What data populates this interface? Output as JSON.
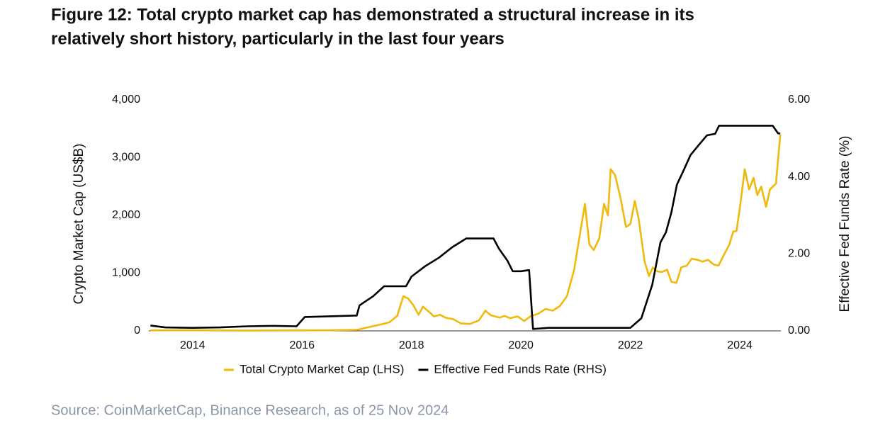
{
  "chart_data": {
    "type": "line",
    "title": [
      "Figure 12: Total crypto market cap has demonstrated a structural increase in its",
      "relatively short history, particularly in the last four years"
    ],
    "y_label": "Crypto Market Cap (US$B)",
    "y2_label": "Effective Fed Funds Rate (%)",
    "source": "Source: CoinMarketCap, Binance Research, as of 25 Nov 2024",
    "xlim": [
      2013.2,
      2024.75
    ],
    "xticks": [
      2014,
      2016,
      2018,
      2020,
      2022,
      2024
    ],
    "ylim": [
      0,
      4000
    ],
    "yticks": [
      0,
      {
        "value": 1000,
        "label": "1,000"
      },
      {
        "value": 2000,
        "label": "2,000"
      },
      {
        "value": 3000,
        "label": "3,000"
      },
      {
        "value": 4000,
        "label": "4,000"
      }
    ],
    "y2lim": [
      0,
      6
    ],
    "y2ticks": [
      {
        "value": 0,
        "label": "0.00"
      },
      {
        "value": 2,
        "label": "2.00"
      },
      {
        "value": 4,
        "label": "4.00"
      },
      {
        "value": 6,
        "label": "6.00"
      }
    ],
    "grid": false,
    "legend": "bottom",
    "series": [
      {
        "name": "Total Crypto Market Cap (LHS)",
        "color": "#f0b90b",
        "axis": "y",
        "x": [
          2013.23,
          2014,
          2015,
          2016,
          2016.5,
          2017,
          2017.29,
          2017.48,
          2017.6,
          2017.74,
          2017.85,
          2017.94,
          2018.03,
          2018.13,
          2018.21,
          2018.32,
          2018.41,
          2018.52,
          2018.62,
          2018.77,
          2018.9,
          2019.07,
          2019.23,
          2019.35,
          2019.45,
          2019.61,
          2019.7,
          2019.8,
          2019.94,
          2020.06,
          2020.17,
          2020.32,
          2020.45,
          2020.58,
          2020.71,
          2020.84,
          2020.97,
          2021.1,
          2021.17,
          2021.25,
          2021.33,
          2021.43,
          2021.52,
          2021.59,
          2021.64,
          2021.72,
          2021.82,
          2021.92,
          2022,
          2022.08,
          2022.15,
          2022.26,
          2022.34,
          2022.41,
          2022.49,
          2022.58,
          2022.67,
          2022.75,
          2022.84,
          2022.93,
          2023.03,
          2023.12,
          2023.23,
          2023.32,
          2023.42,
          2023.52,
          2023.61,
          2023.7,
          2023.81,
          2023.88,
          2023.94,
          2024.01,
          2024.09,
          2024.17,
          2024.25,
          2024.32,
          2024.39,
          2024.48,
          2024.55,
          2024.66,
          2024.74
        ],
        "values": [
          8,
          10,
          5,
          8,
          10,
          18,
          80,
          120,
          150,
          260,
          600,
          560,
          450,
          280,
          420,
          330,
          250,
          280,
          230,
          200,
          130,
          120,
          180,
          350,
          270,
          230,
          260,
          220,
          250,
          170,
          250,
          300,
          380,
          350,
          430,
          600,
          1050,
          1800,
          2200,
          1500,
          1400,
          1600,
          2200,
          2000,
          2800,
          2700,
          2300,
          1800,
          1850,
          2250,
          1950,
          1200,
          950,
          1100,
          1030,
          1020,
          1060,
          850,
          830,
          1100,
          1130,
          1250,
          1230,
          1200,
          1230,
          1150,
          1130,
          1300,
          1500,
          1720,
          1730,
          2200,
          2800,
          2450,
          2650,
          2350,
          2500,
          2150,
          2450,
          2550,
          3400
        ]
      },
      {
        "name": "Effective Fed Funds Rate (RHS)",
        "color": "#000000",
        "axis": "y2",
        "x": [
          2013.23,
          2013.5,
          2014,
          2014.5,
          2015,
          2015.5,
          2015.9,
          2016.05,
          2016.5,
          2017,
          2017.05,
          2017.3,
          2017.5,
          2017.9,
          2018,
          2018.25,
          2018.5,
          2018.75,
          2019,
          2019.5,
          2019.6,
          2019.75,
          2019.85,
          2020,
          2020.15,
          2020.22,
          2020.5,
          2021,
          2021.5,
          2022,
          2022.2,
          2022.4,
          2022.55,
          2022.65,
          2022.75,
          2022.85,
          2022.95,
          2023.1,
          2023.25,
          2023.4,
          2023.55,
          2023.62,
          2024.6,
          2024.7,
          2024.74
        ],
        "values": [
          0.14,
          0.09,
          0.08,
          0.09,
          0.12,
          0.13,
          0.12,
          0.36,
          0.38,
          0.4,
          0.66,
          0.9,
          1.16,
          1.16,
          1.41,
          1.68,
          1.9,
          2.18,
          2.4,
          2.4,
          2.13,
          1.83,
          1.55,
          1.55,
          1.58,
          0.05,
          0.08,
          0.08,
          0.08,
          0.08,
          0.33,
          1.2,
          2.3,
          2.56,
          3.08,
          3.8,
          4.1,
          4.57,
          4.83,
          5.08,
          5.12,
          5.33,
          5.33,
          5.13,
          5.13
        ]
      }
    ]
  }
}
